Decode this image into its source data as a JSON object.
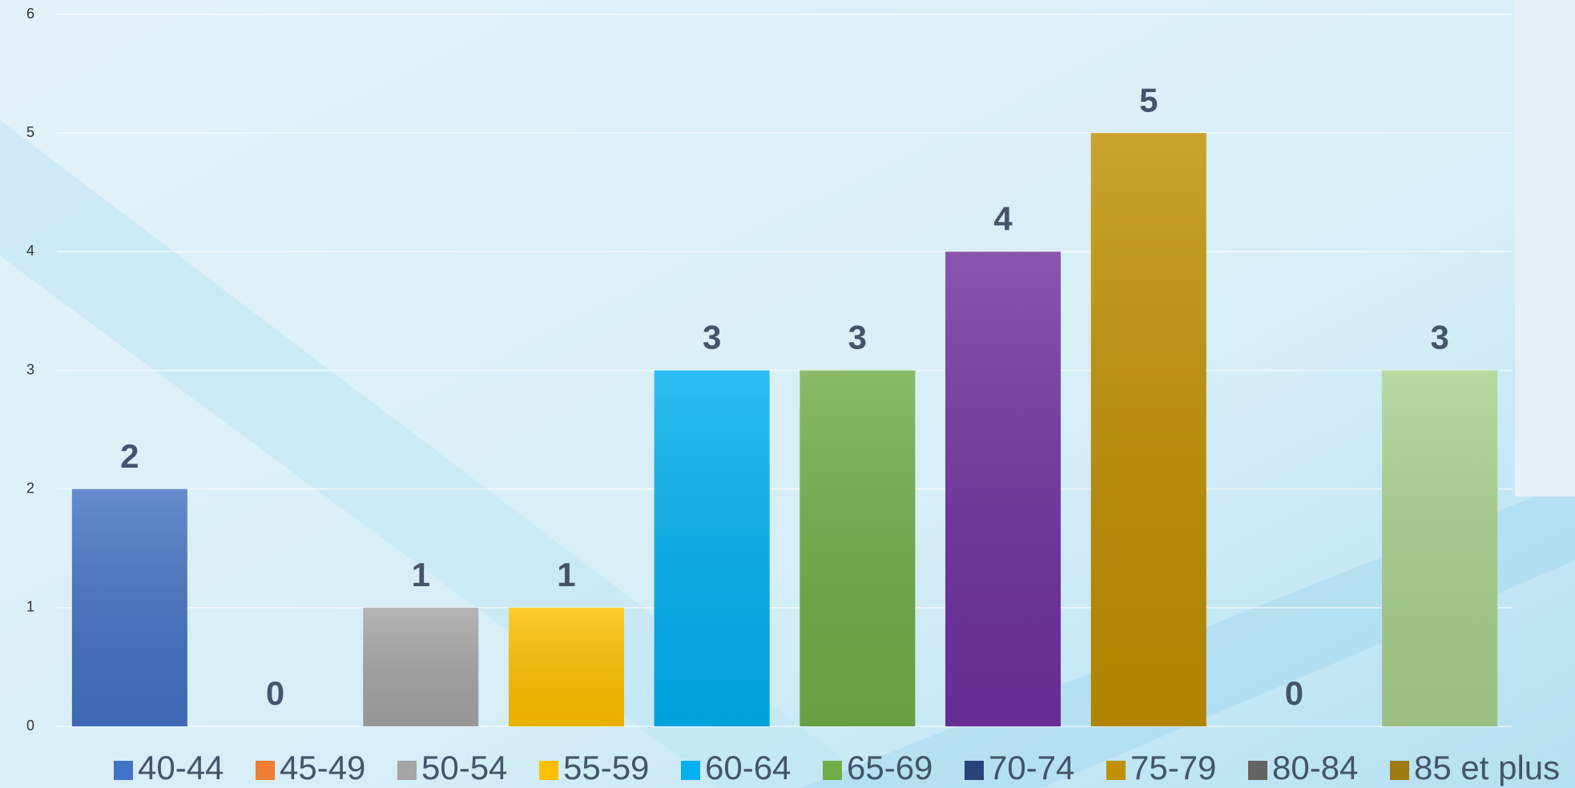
{
  "chart_data": {
    "type": "bar",
    "categories": [
      "40-44",
      "45-49",
      "50-54",
      "55-59",
      "60-64",
      "65-69",
      "70-74",
      "75-79",
      "80-84",
      "85 et plus"
    ],
    "values": [
      2,
      0,
      1,
      1,
      3,
      3,
      4,
      5,
      0,
      3
    ],
    "colors": [
      "#4472c4",
      "#ed7d31",
      "#a5a5a5",
      "#ffc000",
      "#00b0f0",
      "#70ad47",
      "#7030a0",
      "#bf9000",
      "#7f7f7f",
      "#a9d18e"
    ],
    "legend_colors": [
      "#4472c4",
      "#ed7d31",
      "#a5a5a5",
      "#ffc000",
      "#00b0f0",
      "#70ad47",
      "#264478",
      "#bf9000",
      "#636363",
      "#9e7b0f"
    ],
    "ylim": [
      0,
      6
    ],
    "yticks": [
      0,
      1,
      2,
      3,
      4,
      5,
      6
    ],
    "grid": true,
    "legend": "bottom"
  }
}
